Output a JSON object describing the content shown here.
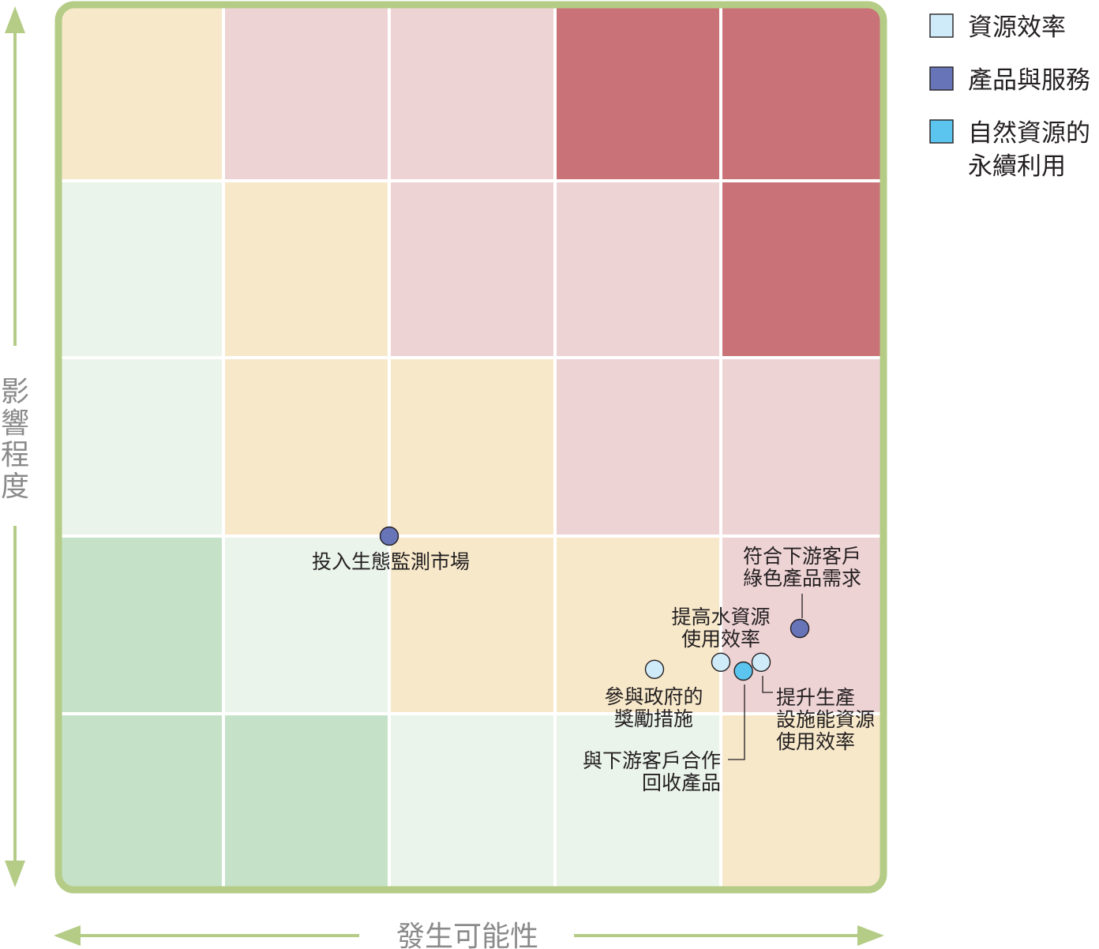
{
  "chart_data": {
    "type": "scatter",
    "title": "",
    "xlabel": "發生可能性",
    "ylabel": "影響程度",
    "xlim": [
      0,
      5
    ],
    "ylim": [
      0,
      5
    ],
    "grid": true,
    "legend_position": "top-right",
    "risk_grid": {
      "rows_top_to_bottom": [
        [
          "medium",
          "high",
          "high",
          "very-high",
          "very-high"
        ],
        [
          "low",
          "medium",
          "high",
          "high",
          "very-high"
        ],
        [
          "low",
          "medium",
          "medium",
          "high",
          "high"
        ],
        [
          "very-low",
          "low",
          "medium",
          "medium",
          "high"
        ],
        [
          "very-low",
          "very-low",
          "low",
          "low",
          "medium"
        ]
      ],
      "colors": {
        "very-high": "#c97378",
        "high": "#eed3d5",
        "medium": "#f7e8ca",
        "low": "#eaf4ea",
        "very-low": "#c5e2c9"
      }
    },
    "series": [
      {
        "name": "資源效率",
        "color": "#cfeaf9",
        "points": [
          {
            "label": "參與政府的獎勵措施",
            "label_lines": [
              "參與政府的",
              "獎勵措施"
            ],
            "x": 3.6,
            "y": 1.25
          },
          {
            "label": "提高水資源使用效率",
            "label_lines": [
              "提高水資源",
              "使用效率"
            ],
            "x": 4.0,
            "y": 1.29
          },
          {
            "label": "提升生產設施能資源使用效率",
            "label_lines": [
              "提升生產",
              "設施能資源",
              "使用效率"
            ],
            "x": 4.25,
            "y": 1.29
          }
        ]
      },
      {
        "name": "產品與服務",
        "color": "#6874b8",
        "points": [
          {
            "label": "投入生態監測市場",
            "label_lines": [
              "投入生態監測市場"
            ],
            "x": 2.0,
            "y": 2.0
          },
          {
            "label": "符合下游客戶綠色產品需求",
            "label_lines": [
              "符合下游客戶",
              "綠色產品需求"
            ],
            "x": 4.49,
            "y": 1.48
          }
        ]
      },
      {
        "name": "自然資源的永續利用",
        "name_lines": [
          "自然資源的",
          "永續利用"
        ],
        "color": "#5bc5ef",
        "points": [
          {
            "label": "與下游客戶合作回收產品",
            "label_lines": [
              "與下游客戶合作",
              "回收產品"
            ],
            "x": 4.14,
            "y": 1.24
          }
        ]
      }
    ]
  },
  "style": {
    "frame_color": "#b4cc86",
    "axis_arrow_color": "#b4cc86",
    "marker_stroke": "#231f20",
    "label_color": "#231f20"
  }
}
